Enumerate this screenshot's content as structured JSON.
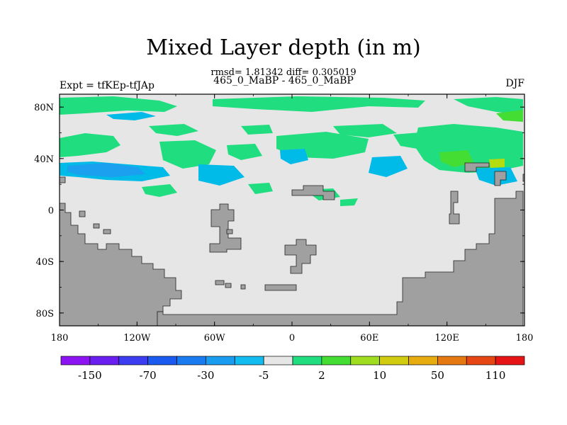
{
  "title": "Mixed Layer depth (in m)",
  "stats": "rmsd= 1.81342 diff= 0.305019",
  "subtitle": "465_0_MaBP - 465_0_MaBP",
  "left_label": "Expt = tfKEp-tfJAp",
  "right_label": "DJF",
  "map": {
    "lon_range": [
      -180,
      180
    ],
    "lat_range": [
      -90,
      90
    ],
    "x_ticks": [
      "180",
      "120W",
      "60W",
      "0",
      "60E",
      "120E",
      "180"
    ],
    "y_ticks": [
      "80N",
      "40N",
      "0",
      "40S",
      "80S"
    ],
    "colors": {
      "land": "#a0a0a0",
      "ocean": "#e6e6e6",
      "green": "#20dd80",
      "cyan": "#00bbe8",
      "blue": "#1aa0ee",
      "lime": "#44dd33",
      "yellow": "#b4dc10"
    }
  },
  "colorbar": {
    "colors": [
      "#8c14f2",
      "#6a1ef0",
      "#3c3cf0",
      "#1a5af0",
      "#1a7af0",
      "#1a9cf0",
      "#12bcf0",
      "#e6e6e6",
      "#20dd80",
      "#44dd33",
      "#a0dc20",
      "#d2cc10",
      "#e6ac10",
      "#e67812",
      "#e64614",
      "#e61414"
    ],
    "labels": [
      "-150",
      "-70",
      "-30",
      "-5",
      "2",
      "10",
      "50",
      "110"
    ]
  }
}
